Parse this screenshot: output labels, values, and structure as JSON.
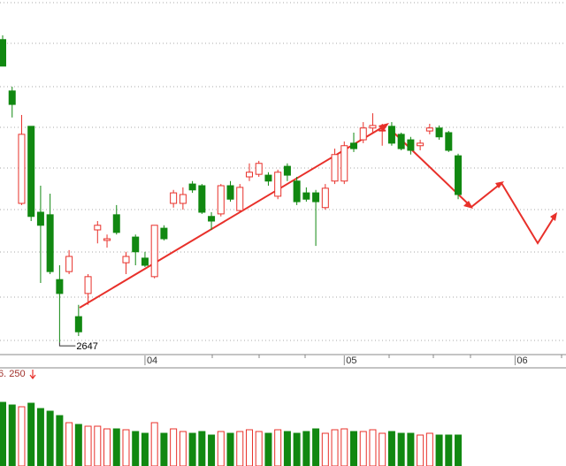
{
  "chart_data": {
    "type": "candlestick",
    "categories": [
      null,
      null,
      null,
      null,
      null,
      null,
      null,
      null,
      null,
      null,
      null,
      null,
      null,
      null,
      null,
      "04",
      null,
      null,
      null,
      null,
      null,
      null,
      null,
      null,
      null,
      null,
      null,
      null,
      null,
      null,
      null,
      null,
      null,
      null,
      null,
      null,
      "05",
      null,
      null,
      null,
      null,
      null,
      null,
      null,
      null,
      null,
      null,
      null,
      null,
      null,
      null,
      null,
      null,
      null,
      "06"
    ],
    "open": [
      3366,
      3244,
      2977,
      3160,
      2956,
      2950,
      2796,
      2815,
      2708,
      2763,
      2914,
      2889,
      2950,
      2836,
      2897,
      2847,
      2803,
      2918,
      2977,
      2977,
      3023,
      3019,
      2946,
      2952,
      3019,
      2960,
      3040,
      3046,
      3044,
      2994,
      3065,
      3030,
      3002,
      3002,
      2967,
      3030,
      3030,
      3120,
      3128,
      3156,
      3149,
      3160,
      3141,
      3128,
      3114,
      3149,
      3156,
      3145,
      3090,
      null,
      null,
      null,
      null,
      null,
      null
    ],
    "high": [
      3376,
      3254,
      3187,
      3160,
      3019,
      3000,
      2830,
      2866,
      2736,
      2809,
      2935,
      2903,
      2973,
      2862,
      2903,
      2862,
      2925,
      2925,
      3009,
      3015,
      3030,
      3023,
      2956,
      3023,
      3030,
      3023,
      3072,
      3078,
      3051,
      3057,
      3072,
      3040,
      3015,
      3009,
      3023,
      3107,
      3124,
      3145,
      3170,
      3191,
      3166,
      3170,
      3145,
      3135,
      3128,
      3166,
      3162,
      3149,
      3095,
      null,
      null,
      null,
      null,
      null,
      null
    ],
    "low": [
      3303,
      3181,
      2973,
      2935,
      2788,
      2809,
      2647,
      2809,
      2662,
      2736,
      2882,
      2872,
      2903,
      2809,
      2830,
      2826,
      2799,
      2889,
      2967,
      2962,
      3002,
      2952,
      2914,
      2946,
      2981,
      2956,
      3030,
      3040,
      3019,
      2987,
      3030,
      2973,
      2981,
      2876,
      2962,
      3023,
      3023,
      3099,
      3120,
      3145,
      3114,
      3114,
      3103,
      3093,
      3103,
      3141,
      3128,
      3099,
      2987,
      null,
      null,
      null,
      null,
      null,
      null
    ],
    "close": [
      3303,
      3212,
      3141,
      2946,
      2925,
      2815,
      2763,
      2851,
      2672,
      2803,
      2925,
      2893,
      2908,
      2851,
      2862,
      2830,
      2925,
      2893,
      3002,
      2998,
      3009,
      2956,
      2935,
      3019,
      2987,
      3015,
      3051,
      3072,
      3030,
      3051,
      3044,
      2981,
      2987,
      2981,
      3013,
      3093,
      3114,
      3107,
      3156,
      3162,
      3151,
      3120,
      3107,
      3103,
      3120,
      3156,
      3135,
      3103,
      2998,
      null,
      null,
      null,
      null,
      null,
      null
    ],
    "volume": [
      72,
      69,
      67,
      71,
      65,
      62,
      57,
      49,
      47,
      45,
      45,
      42,
      42,
      41,
      39,
      37,
      49,
      37,
      42,
      39,
      37,
      39,
      35,
      39,
      37,
      39,
      41,
      39,
      37,
      41,
      39,
      37,
      39,
      42,
      37,
      41,
      42,
      39,
      39,
      41,
      37,
      39,
      37,
      37,
      35,
      37,
      35,
      35,
      35,
      null,
      null,
      null,
      null,
      null,
      null
    ],
    "up_color": "#e8302a",
    "down_color": "#118811",
    "ylim": [
      2620,
      3460
    ],
    "volume_ylim": [
      0,
      110
    ],
    "volume_label": "6. 250"
  }
}
